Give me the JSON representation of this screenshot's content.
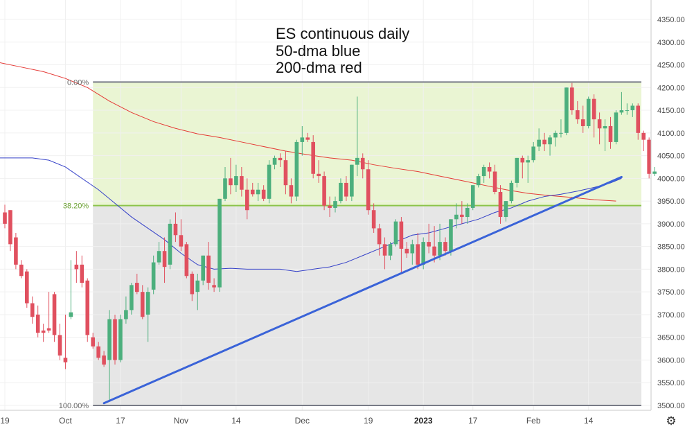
{
  "chart_data": {
    "type": "candlestick",
    "title_lines": [
      "ES continuous daily",
      "50-dma blue",
      "200-dma red"
    ],
    "ylim": [
      3470,
      4390
    ],
    "y_ticks": [
      3500,
      3550,
      3600,
      3650,
      3700,
      3750,
      3800,
      3850,
      3900,
      3950,
      4000,
      4050,
      4100,
      4150,
      4200,
      4250,
      4300,
      4350
    ],
    "y_tick_labels": [
      "3500.00",
      "3550.00",
      "3600.00",
      "3650.00",
      "3700.00",
      "3750.00",
      "3800.00",
      "3850.00",
      "3900.00",
      "3950.00",
      "4000.00",
      "4050.00",
      "4100.00",
      "4150.00",
      "4200.00",
      "4250.00",
      "4300.00",
      "4350.00"
    ],
    "x_ticks": [
      {
        "index": 0,
        "label": "19"
      },
      {
        "index": 11,
        "label": "Oct"
      },
      {
        "index": 21,
        "label": "17"
      },
      {
        "index": 32,
        "label": "Nov"
      },
      {
        "index": 42,
        "label": "14"
      },
      {
        "index": 54,
        "label": "Dec"
      },
      {
        "index": 66,
        "label": "19"
      },
      {
        "index": 76,
        "label": "2023",
        "bold": true
      },
      {
        "index": 85,
        "label": "17"
      },
      {
        "index": 96,
        "label": "Feb"
      },
      {
        "index": 106,
        "label": "14"
      }
    ],
    "fib_retracement": {
      "high": 4212,
      "low": 3500,
      "levels": [
        {
          "label": "0.00%",
          "value": 4212,
          "color": "#787b86"
        },
        {
          "label": "38.20%",
          "value": 3940,
          "color": "#8bc34a"
        },
        {
          "label": "100.00%",
          "value": 3500,
          "color": "#787b86"
        }
      ],
      "start_index": 16
    },
    "trendline": {
      "start": {
        "index": 18,
        "value": 3505
      },
      "end": {
        "index": 112,
        "value": 4003
      },
      "color": "#3a63d8"
    },
    "colors": {
      "up": "#4caf7d",
      "down": "#e0505f",
      "ma50": "#3440c8",
      "ma200": "#e53935",
      "upper_zone": "#eaf5d3",
      "lower_zone": "#e6e6e6"
    },
    "candles": [
      [
        3925,
        3942,
        3900,
        3890
      ],
      [
        3930,
        3930,
        3855,
        3840
      ],
      [
        3870,
        3880,
        3810,
        3800
      ],
      [
        3810,
        3820,
        3785,
        3780
      ],
      [
        3795,
        3800,
        3725,
        3715
      ],
      [
        3725,
        3740,
        3695,
        3680
      ],
      [
        3700,
        3720,
        3660,
        3650
      ],
      [
        3665,
        3680,
        3660,
        3640
      ],
      [
        3670,
        3750,
        3665,
        3660
      ],
      [
        3745,
        3750,
        3655,
        3640
      ],
      [
        3655,
        3680,
        3610,
        3600
      ],
      [
        3605,
        3700,
        3595,
        3580
      ],
      [
        3695,
        3820,
        3705,
        3690
      ],
      [
        3810,
        3840,
        3800,
        3770
      ],
      [
        3810,
        3830,
        3770,
        3760
      ],
      [
        3775,
        3780,
        3655,
        3640
      ],
      [
        3650,
        3660,
        3630,
        3625
      ],
      [
        3630,
        3640,
        3605,
        3600
      ],
      [
        3610,
        3620,
        3590,
        3585
      ],
      [
        3600,
        3710,
        3690,
        3510
      ],
      [
        3690,
        3700,
        3600,
        3590
      ],
      [
        3600,
        3700,
        3690,
        3595
      ],
      [
        3690,
        3740,
        3710,
        3680
      ],
      [
        3710,
        3770,
        3765,
        3700
      ],
      [
        3770,
        3790,
        3750,
        3745
      ],
      [
        3750,
        3765,
        3695,
        3690
      ],
      [
        3700,
        3760,
        3750,
        3640
      ],
      [
        3755,
        3830,
        3815,
        3745
      ],
      [
        3815,
        3860,
        3840,
        3810
      ],
      [
        3840,
        3870,
        3805,
        3770
      ],
      [
        3810,
        3910,
        3900,
        3800
      ],
      [
        3900,
        3925,
        3875,
        3860
      ],
      [
        3875,
        3910,
        3850,
        3840
      ],
      [
        3855,
        3860,
        3785,
        3780
      ],
      [
        3790,
        3795,
        3745,
        3730
      ],
      [
        3750,
        3790,
        3775,
        3710
      ],
      [
        3775,
        3830,
        3830,
        3765
      ],
      [
        3830,
        3860,
        3770,
        3755
      ],
      [
        3765,
        3780,
        3760,
        3750
      ],
      [
        3760,
        3945,
        3955,
        3750
      ],
      [
        3955,
        4025,
        4000,
        3950
      ],
      [
        4000,
        4045,
        3985,
        3965
      ],
      [
        3985,
        4030,
        4005,
        3970
      ],
      [
        4005,
        4025,
        3975,
        3960
      ],
      [
        3975,
        4000,
        3930,
        3910
      ],
      [
        3975,
        3990,
        3965,
        3960
      ],
      [
        3965,
        3990,
        3975,
        3950
      ],
      [
        3975,
        3985,
        3955,
        3950
      ],
      [
        3955,
        4040,
        4030,
        3945
      ],
      [
        4030,
        4050,
        4045,
        4020
      ],
      [
        4045,
        4055,
        4040,
        4025
      ],
      [
        4040,
        4060,
        3985,
        3965
      ],
      [
        3985,
        4000,
        3960,
        3945
      ],
      [
        3960,
        4085,
        4080,
        3950
      ],
      [
        4080,
        4115,
        4090,
        4050
      ],
      [
        4090,
        4100,
        4085,
        4080
      ],
      [
        4080,
        4095,
        4010,
        4000
      ],
      [
        4010,
        4040,
        4005,
        3990
      ],
      [
        4005,
        4015,
        3940,
        3930
      ],
      [
        3940,
        3960,
        3935,
        3915
      ],
      [
        3935,
        3960,
        3950,
        3925
      ],
      [
        3950,
        4000,
        3990,
        3945
      ],
      [
        3990,
        4005,
        3960,
        3950
      ],
      [
        3960,
        4030,
        4030,
        3950
      ],
      [
        4030,
        4180,
        4045,
        4005
      ],
      [
        4045,
        4055,
        4020,
        4000
      ],
      [
        4020,
        4040,
        3930,
        3920
      ],
      [
        3930,
        3945,
        3890,
        3880
      ],
      [
        3890,
        3900,
        3855,
        3830
      ],
      [
        3855,
        3870,
        3830,
        3800
      ],
      [
        3830,
        3860,
        3855,
        3820
      ],
      [
        3855,
        3910,
        3905,
        3850
      ],
      [
        3905,
        3915,
        3845,
        3790
      ],
      [
        3845,
        3860,
        3835,
        3825
      ],
      [
        3835,
        3865,
        3855,
        3810
      ],
      [
        3855,
        3880,
        3810,
        3800
      ],
      [
        3810,
        3870,
        3860,
        3800
      ],
      [
        3860,
        3900,
        3850,
        3835
      ],
      [
        3850,
        3895,
        3830,
        3815
      ],
      [
        3830,
        3900,
        3860,
        3820
      ],
      [
        3860,
        3870,
        3840,
        3830
      ],
      [
        3840,
        3890,
        3910,
        3830
      ],
      [
        3910,
        3945,
        3920,
        3890
      ],
      [
        3920,
        3950,
        3915,
        3900
      ],
      [
        3915,
        3945,
        3935,
        3900
      ],
      [
        3935,
        3980,
        3985,
        3930
      ],
      [
        3985,
        4010,
        4005,
        3980
      ],
      [
        4005,
        4030,
        4025,
        3990
      ],
      [
        4025,
        4035,
        4015,
        4000
      ],
      [
        4015,
        4030,
        3970,
        3965
      ],
      [
        3970,
        3985,
        3915,
        3900
      ],
      [
        3915,
        3925,
        3950,
        3905
      ],
      [
        3950,
        3995,
        3990,
        3945
      ],
      [
        3990,
        4045,
        4045,
        3980
      ],
      [
        4045,
        4050,
        4035,
        4000
      ],
      [
        4035,
        4050,
        4040,
        3990
      ],
      [
        4040,
        4080,
        4070,
        4035
      ],
      [
        4070,
        4110,
        4085,
        4060
      ],
      [
        4085,
        4100,
        4075,
        4060
      ],
      [
        4075,
        4095,
        4090,
        4050
      ],
      [
        4090,
        4105,
        4100,
        4070
      ],
      [
        4100,
        4130,
        4100,
        4090
      ],
      [
        4100,
        4190,
        4200,
        4095
      ],
      [
        4200,
        4210,
        4150,
        4140
      ],
      [
        4150,
        4170,
        4130,
        4120
      ],
      [
        4130,
        4160,
        4115,
        4100
      ],
      [
        4115,
        4180,
        4175,
        4110
      ],
      [
        4175,
        4185,
        4130,
        4090
      ],
      [
        4130,
        4145,
        4110,
        4075
      ],
      [
        4110,
        4130,
        4115,
        4060
      ],
      [
        4115,
        4135,
        4080,
        4065
      ],
      [
        4080,
        4150,
        4145,
        4075
      ],
      [
        4145,
        4190,
        4150,
        4140
      ],
      [
        4150,
        4165,
        4150,
        4140
      ],
      [
        4150,
        4165,
        4160,
        4135
      ],
      [
        4160,
        4165,
        4100,
        4085
      ],
      [
        4100,
        4105,
        4085,
        4060
      ],
      [
        4085,
        4090,
        4010,
        4000
      ],
      [
        4010,
        4025,
        4015,
        4005
      ]
    ],
    "ma50": [
      [
        -1,
        4045
      ],
      [
        2,
        4045
      ],
      [
        5,
        4045
      ],
      [
        8,
        4040
      ],
      [
        11,
        4025
      ],
      [
        14,
        4000
      ],
      [
        17,
        3975
      ],
      [
        20,
        3945
      ],
      [
        23,
        3915
      ],
      [
        26,
        3890
      ],
      [
        29,
        3865
      ],
      [
        32,
        3835
      ],
      [
        35,
        3810
      ],
      [
        38,
        3800
      ],
      [
        41,
        3802
      ],
      [
        44,
        3800
      ],
      [
        47,
        3800
      ],
      [
        50,
        3800
      ],
      [
        53,
        3795
      ],
      [
        56,
        3800
      ],
      [
        59,
        3805
      ],
      [
        62,
        3815
      ],
      [
        65,
        3830
      ],
      [
        68,
        3845
      ],
      [
        71,
        3860
      ],
      [
        74,
        3875
      ],
      [
        77,
        3880
      ],
      [
        80,
        3890
      ],
      [
        83,
        3900
      ],
      [
        86,
        3910
      ],
      [
        89,
        3925
      ],
      [
        92,
        3935
      ],
      [
        95,
        3950
      ],
      [
        98,
        3960
      ],
      [
        101,
        3965
      ],
      [
        104,
        3972
      ],
      [
        107,
        3980
      ],
      [
        110,
        3990
      ],
      [
        112,
        4000
      ]
    ],
    "ma200": [
      [
        -1,
        4255
      ],
      [
        3,
        4245
      ],
      [
        7,
        4235
      ],
      [
        11,
        4220
      ],
      [
        15,
        4200
      ],
      [
        19,
        4170
      ],
      [
        23,
        4145
      ],
      [
        27,
        4125
      ],
      [
        31,
        4110
      ],
      [
        35,
        4098
      ],
      [
        39,
        4090
      ],
      [
        43,
        4080
      ],
      [
        47,
        4070
      ],
      [
        51,
        4060
      ],
      [
        55,
        4052
      ],
      [
        59,
        4045
      ],
      [
        63,
        4040
      ],
      [
        67,
        4030
      ],
      [
        71,
        4022
      ],
      [
        75,
        4015
      ],
      [
        79,
        4005
      ],
      [
        83,
        3995
      ],
      [
        87,
        3985
      ],
      [
        91,
        3975
      ],
      [
        95,
        3967
      ],
      [
        99,
        3962
      ],
      [
        103,
        3958
      ],
      [
        107,
        3953
      ],
      [
        111,
        3950
      ]
    ]
  }
}
